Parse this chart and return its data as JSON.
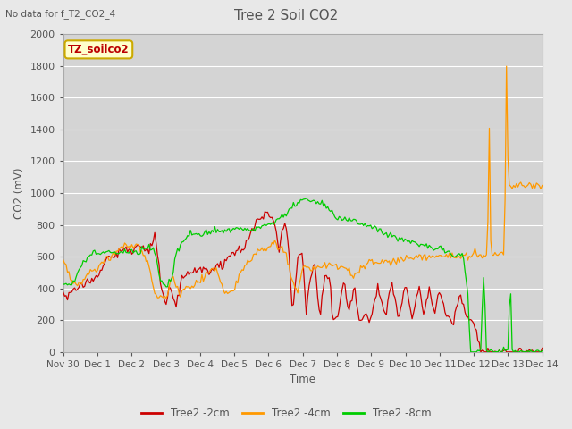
{
  "title": "Tree 2 Soil CO2",
  "subtitle": "No data for f_T2_CO2_4",
  "ylabel": "CO2 (mV)",
  "xlabel": "Time",
  "annotation_box": "TZ_soilco2",
  "ylim": [
    0,
    2000
  ],
  "yticks": [
    0,
    200,
    400,
    600,
    800,
    1000,
    1200,
    1400,
    1600,
    1800,
    2000
  ],
  "xtick_labels": [
    "Nov 30",
    "Dec 1",
    "Dec 2",
    "Dec 3",
    "Dec 4",
    "Dec 5",
    "Dec 6",
    "Dec 7",
    "Dec 8",
    "Dec 9",
    "Dec 10",
    "Dec 11",
    "Dec 12",
    "Dec 13",
    "Dec 14"
  ],
  "line_colors": [
    "#cc0000",
    "#ff9900",
    "#00cc00"
  ],
  "line_labels": [
    "Tree2 -2cm",
    "Tree2 -4cm",
    "Tree2 -8cm"
  ],
  "fig_bg_color": "#e8e8e8",
  "plot_bg_color": "#d4d4d4",
  "grid_color": "#ffffff",
  "text_color": "#555555",
  "annotation_bg": "#ffffcc",
  "annotation_border": "#ccaa00",
  "n_days": 14,
  "n_pts": 336
}
